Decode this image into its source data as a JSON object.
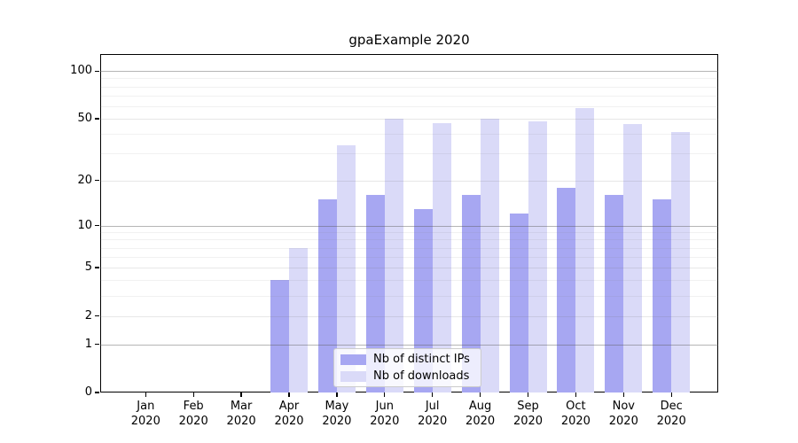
{
  "chart_data": {
    "type": "bar",
    "title": "gpaExample 2020",
    "categories": [
      "Jan",
      "Feb",
      "Mar",
      "Apr",
      "May",
      "Jun",
      "Jul",
      "Aug",
      "Sep",
      "Oct",
      "Nov",
      "Dec"
    ],
    "year_label": "2020",
    "series": [
      {
        "name": "Nb of distinct IPs",
        "color": "#a7a7f2",
        "values": [
          0,
          0,
          0,
          4,
          15,
          16,
          13,
          16,
          12,
          18,
          16,
          15
        ]
      },
      {
        "name": "Nb of downloads",
        "color": "#dadaf8",
        "values": [
          0,
          0,
          0,
          7,
          34,
          50,
          47,
          50,
          48,
          58,
          46,
          41
        ]
      }
    ],
    "yscale": "log1p",
    "yticks": [
      0,
      1,
      2,
      5,
      10,
      20,
      50,
      100
    ],
    "ylim": [
      0,
      127
    ],
    "grid": true,
    "gridline_values_major": [
      1,
      10,
      100
    ],
    "gridline_values_mid": [
      2,
      5,
      20,
      50
    ],
    "gridline_values_minor": [
      3,
      4,
      6,
      7,
      8,
      9,
      30,
      40,
      60,
      70,
      80,
      90
    ],
    "grid_color_major": "rgba(90,90,90,0.45)",
    "grid_color_mid": "rgba(120,120,120,0.18)",
    "grid_color_minor": "rgba(120,120,120,0.10)",
    "legend_position": "lower center",
    "axis_color": "#000000"
  }
}
